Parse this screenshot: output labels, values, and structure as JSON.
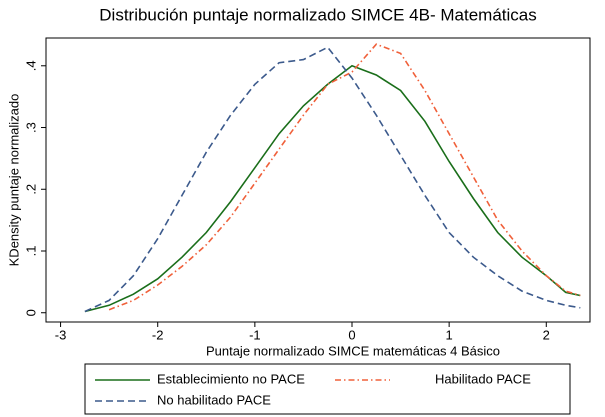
{
  "chart_data": {
    "type": "line",
    "title": "Distribución puntaje normalizado SIMCE 4B- Matemáticas",
    "x_label": "Puntaje normalizado SIMCE matemáticas 4 Básico",
    "y_label": "KDensity puntaje normalizado",
    "x": [
      -2.75,
      -2.5,
      -2.25,
      -2,
      -1.75,
      -1.5,
      -1.25,
      -1,
      -0.75,
      -0.5,
      -0.25,
      0,
      0.25,
      0.5,
      0.75,
      1,
      1.25,
      1.5,
      1.75,
      2,
      2.2,
      2.35
    ],
    "series": [
      {
        "name": "Establecimiento no PACE",
        "color": "#1a6e1a",
        "dash": "solid",
        "values": [
          0.002,
          0.012,
          0.03,
          0.055,
          0.09,
          0.13,
          0.18,
          0.235,
          0.29,
          0.335,
          0.37,
          0.4,
          0.385,
          0.36,
          0.31,
          0.245,
          0.185,
          0.13,
          0.09,
          0.06,
          0.033,
          0.028
        ]
      },
      {
        "name": "Habilitado PACE",
        "color": "#f0603a",
        "dash": "dashdot",
        "values": [
          null,
          0.005,
          0.02,
          0.045,
          0.075,
          0.11,
          0.155,
          0.21,
          0.265,
          0.32,
          0.37,
          0.39,
          0.435,
          0.42,
          0.36,
          0.29,
          0.22,
          0.15,
          0.1,
          0.06,
          0.035,
          0.028
        ]
      },
      {
        "name": "No habilitado PACE",
        "color": "#3c5a8c",
        "dash": "dash",
        "values": [
          0.002,
          0.02,
          0.06,
          0.12,
          0.19,
          0.26,
          0.32,
          0.37,
          0.405,
          0.41,
          0.43,
          0.38,
          0.32,
          0.255,
          0.19,
          0.13,
          0.09,
          0.06,
          0.035,
          0.02,
          0.012,
          0.008
        ]
      }
    ],
    "xlim": [
      -3.15,
      2.45
    ],
    "xticks": [
      -3,
      -2,
      -1,
      0,
      1,
      2
    ],
    "ylim": [
      -0.015,
      0.445
    ],
    "yticks": [
      0,
      {
        "value": 0.1,
        "label": ".1"
      },
      {
        "value": 0.2,
        "label": ".2"
      },
      {
        "value": 0.3,
        "label": ".3"
      },
      {
        "value": 0.4,
        "label": ".4"
      }
    ],
    "legend": "bottom"
  }
}
